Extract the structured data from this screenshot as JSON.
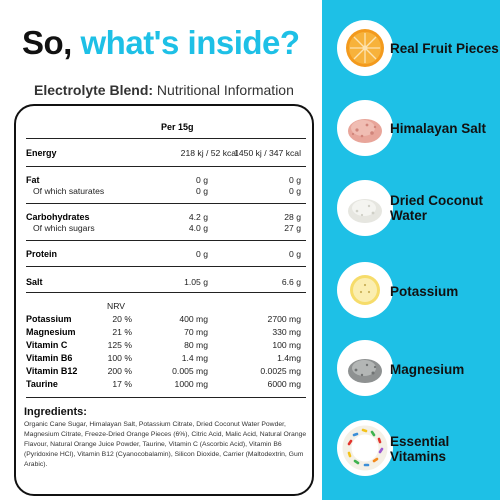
{
  "headline": {
    "part1": "So, ",
    "part2": "what's inside?"
  },
  "subtitle": {
    "bold": "Electrolyte Blend:",
    "rest": " Nutritional Information"
  },
  "table": {
    "per_header": "Per 15g",
    "energy": {
      "label": "Energy",
      "col1": "218 kj / 52 kcal",
      "col2": "1450 kj / 347 kcal"
    },
    "fat": {
      "label": "Fat",
      "col1": "0 g",
      "col2": "0 g"
    },
    "saturates": {
      "label": "Of which saturates",
      "col1": "0 g",
      "col2": "0 g"
    },
    "carbs": {
      "label": "Carbohydrates",
      "col1": "4.2 g",
      "col2": "28 g"
    },
    "sugars": {
      "label": "Of which sugars",
      "col1": "4.0 g",
      "col2": "27 g"
    },
    "protein": {
      "label": "Protein",
      "col1": "0 g",
      "col2": "0 g"
    },
    "salt": {
      "label": "Salt",
      "col1": "1.05 g",
      "col2": "6.6 g"
    },
    "nrv_header": "NRV",
    "minerals": [
      {
        "label": "Potassium",
        "nrv": "20 %",
        "col1": "400 mg",
        "col2": "2700 mg"
      },
      {
        "label": "Magnesium",
        "nrv": "21 %",
        "col1": "70 mg",
        "col2": "330 mg"
      },
      {
        "label": "Vitamin C",
        "nrv": "125 %",
        "col1": "80 mg",
        "col2": "100 mg"
      },
      {
        "label": "Vitamin B6",
        "nrv": "100 %",
        "col1": "1.4 mg",
        "col2": "1.4mg"
      },
      {
        "label": "Vitamin B12",
        "nrv": "200 %",
        "col1": "0.005 mg",
        "col2": "0.0025 mg"
      },
      {
        "label": "Taurine",
        "nrv": "17 %",
        "col1": "1000 mg",
        "col2": "6000 mg"
      }
    ]
  },
  "ingredients": {
    "title": "Ingredients:",
    "text": "Organic Cane Sugar, Himalayan Salt, Potassium Citrate, Dried Coconut Water Powder, Magnesium Citrate, Freeze-Dried Orange Pieces (6%), Citric Acid, Malic Acid, Natural Orange Flavour, Natural Orange Juice Powder, Taurine, Vitamin C (Ascorbic Acid), Vitamin B6 (Pyridoxine HCl), Vitamin B12 (Cyanocobalamin), Silicon Dioxide, Carrier (Maltodextrin, Gum Arabic)."
  },
  "features": [
    {
      "line1": "Real Fruit Pieces",
      "line2": "",
      "icon": "orange-slice-icon"
    },
    {
      "line1": "Himalayan Salt",
      "line2": "",
      "icon": "pink-salt-icon"
    },
    {
      "line1": "Dried Coconut",
      "line2": "Water",
      "icon": "coconut-powder-icon"
    },
    {
      "line1": "Potassium",
      "line2": "",
      "icon": "banana-slice-icon"
    },
    {
      "line1": "Magnesium",
      "line2": "",
      "icon": "magnesium-granules-icon"
    },
    {
      "line1": "Essential",
      "line2": "Vitamins",
      "icon": "vitamin-sprinkles-icon"
    }
  ],
  "colors": {
    "accent": "#1ec0e6",
    "text": "#111111"
  }
}
